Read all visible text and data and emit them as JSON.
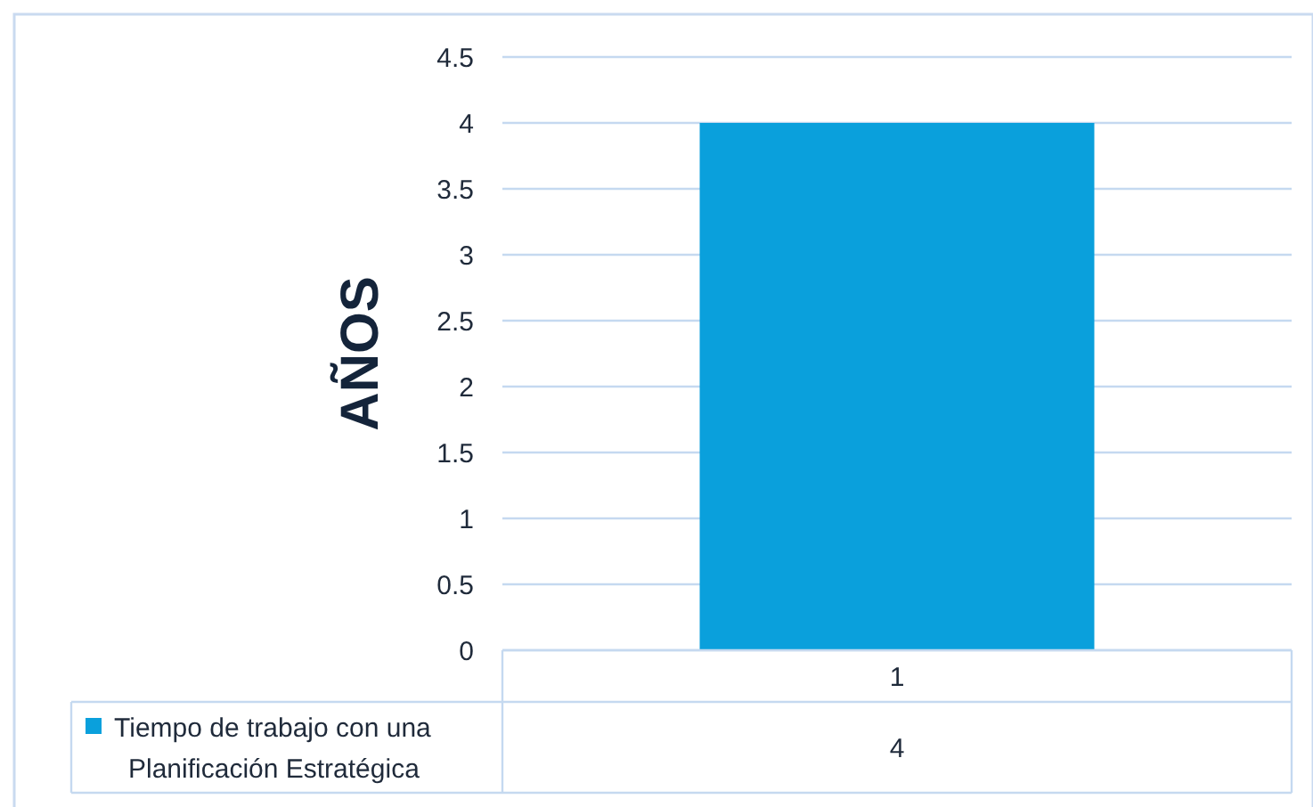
{
  "chart_data": {
    "type": "bar",
    "ylabel": "AÑOS",
    "categories": [
      "1"
    ],
    "series": [
      {
        "name": "Tiempo de trabajo con una Planificación Estratégica",
        "color": "#0aa0dc",
        "values": [
          4
        ]
      }
    ],
    "ylim": [
      0,
      4.5
    ],
    "yticks": [
      0,
      0.5,
      1,
      1.5,
      2,
      2.5,
      3,
      3.5,
      4,
      4.5
    ],
    "grid": "y",
    "data_labels": true,
    "legend": "bottom"
  }
}
